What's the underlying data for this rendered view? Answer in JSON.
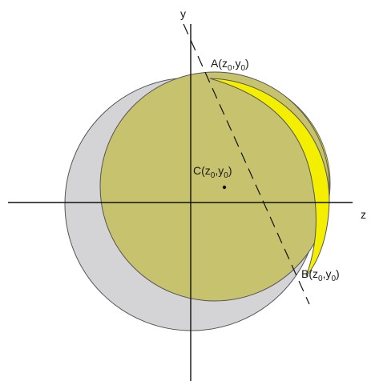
{
  "axes": {
    "y_label": "y",
    "z_label": "z"
  },
  "points": {
    "A": {
      "name": "A",
      "open": "(z",
      "mid": ",y",
      "close": ")",
      "sub": "0"
    },
    "B": {
      "name": "B",
      "open": "(z",
      "mid": ",y",
      "close": ")",
      "sub": "0"
    },
    "C": {
      "name": "C",
      "open": "(z",
      "mid": ",y",
      "close": ")",
      "sub": "0"
    }
  },
  "colors": {
    "gray_circle": "#d4d4d6",
    "olive_circle": "#c6c26e",
    "yellow_crescent": "#f4ef00",
    "axis": "#111111",
    "circle_stroke": "#555555"
  }
}
